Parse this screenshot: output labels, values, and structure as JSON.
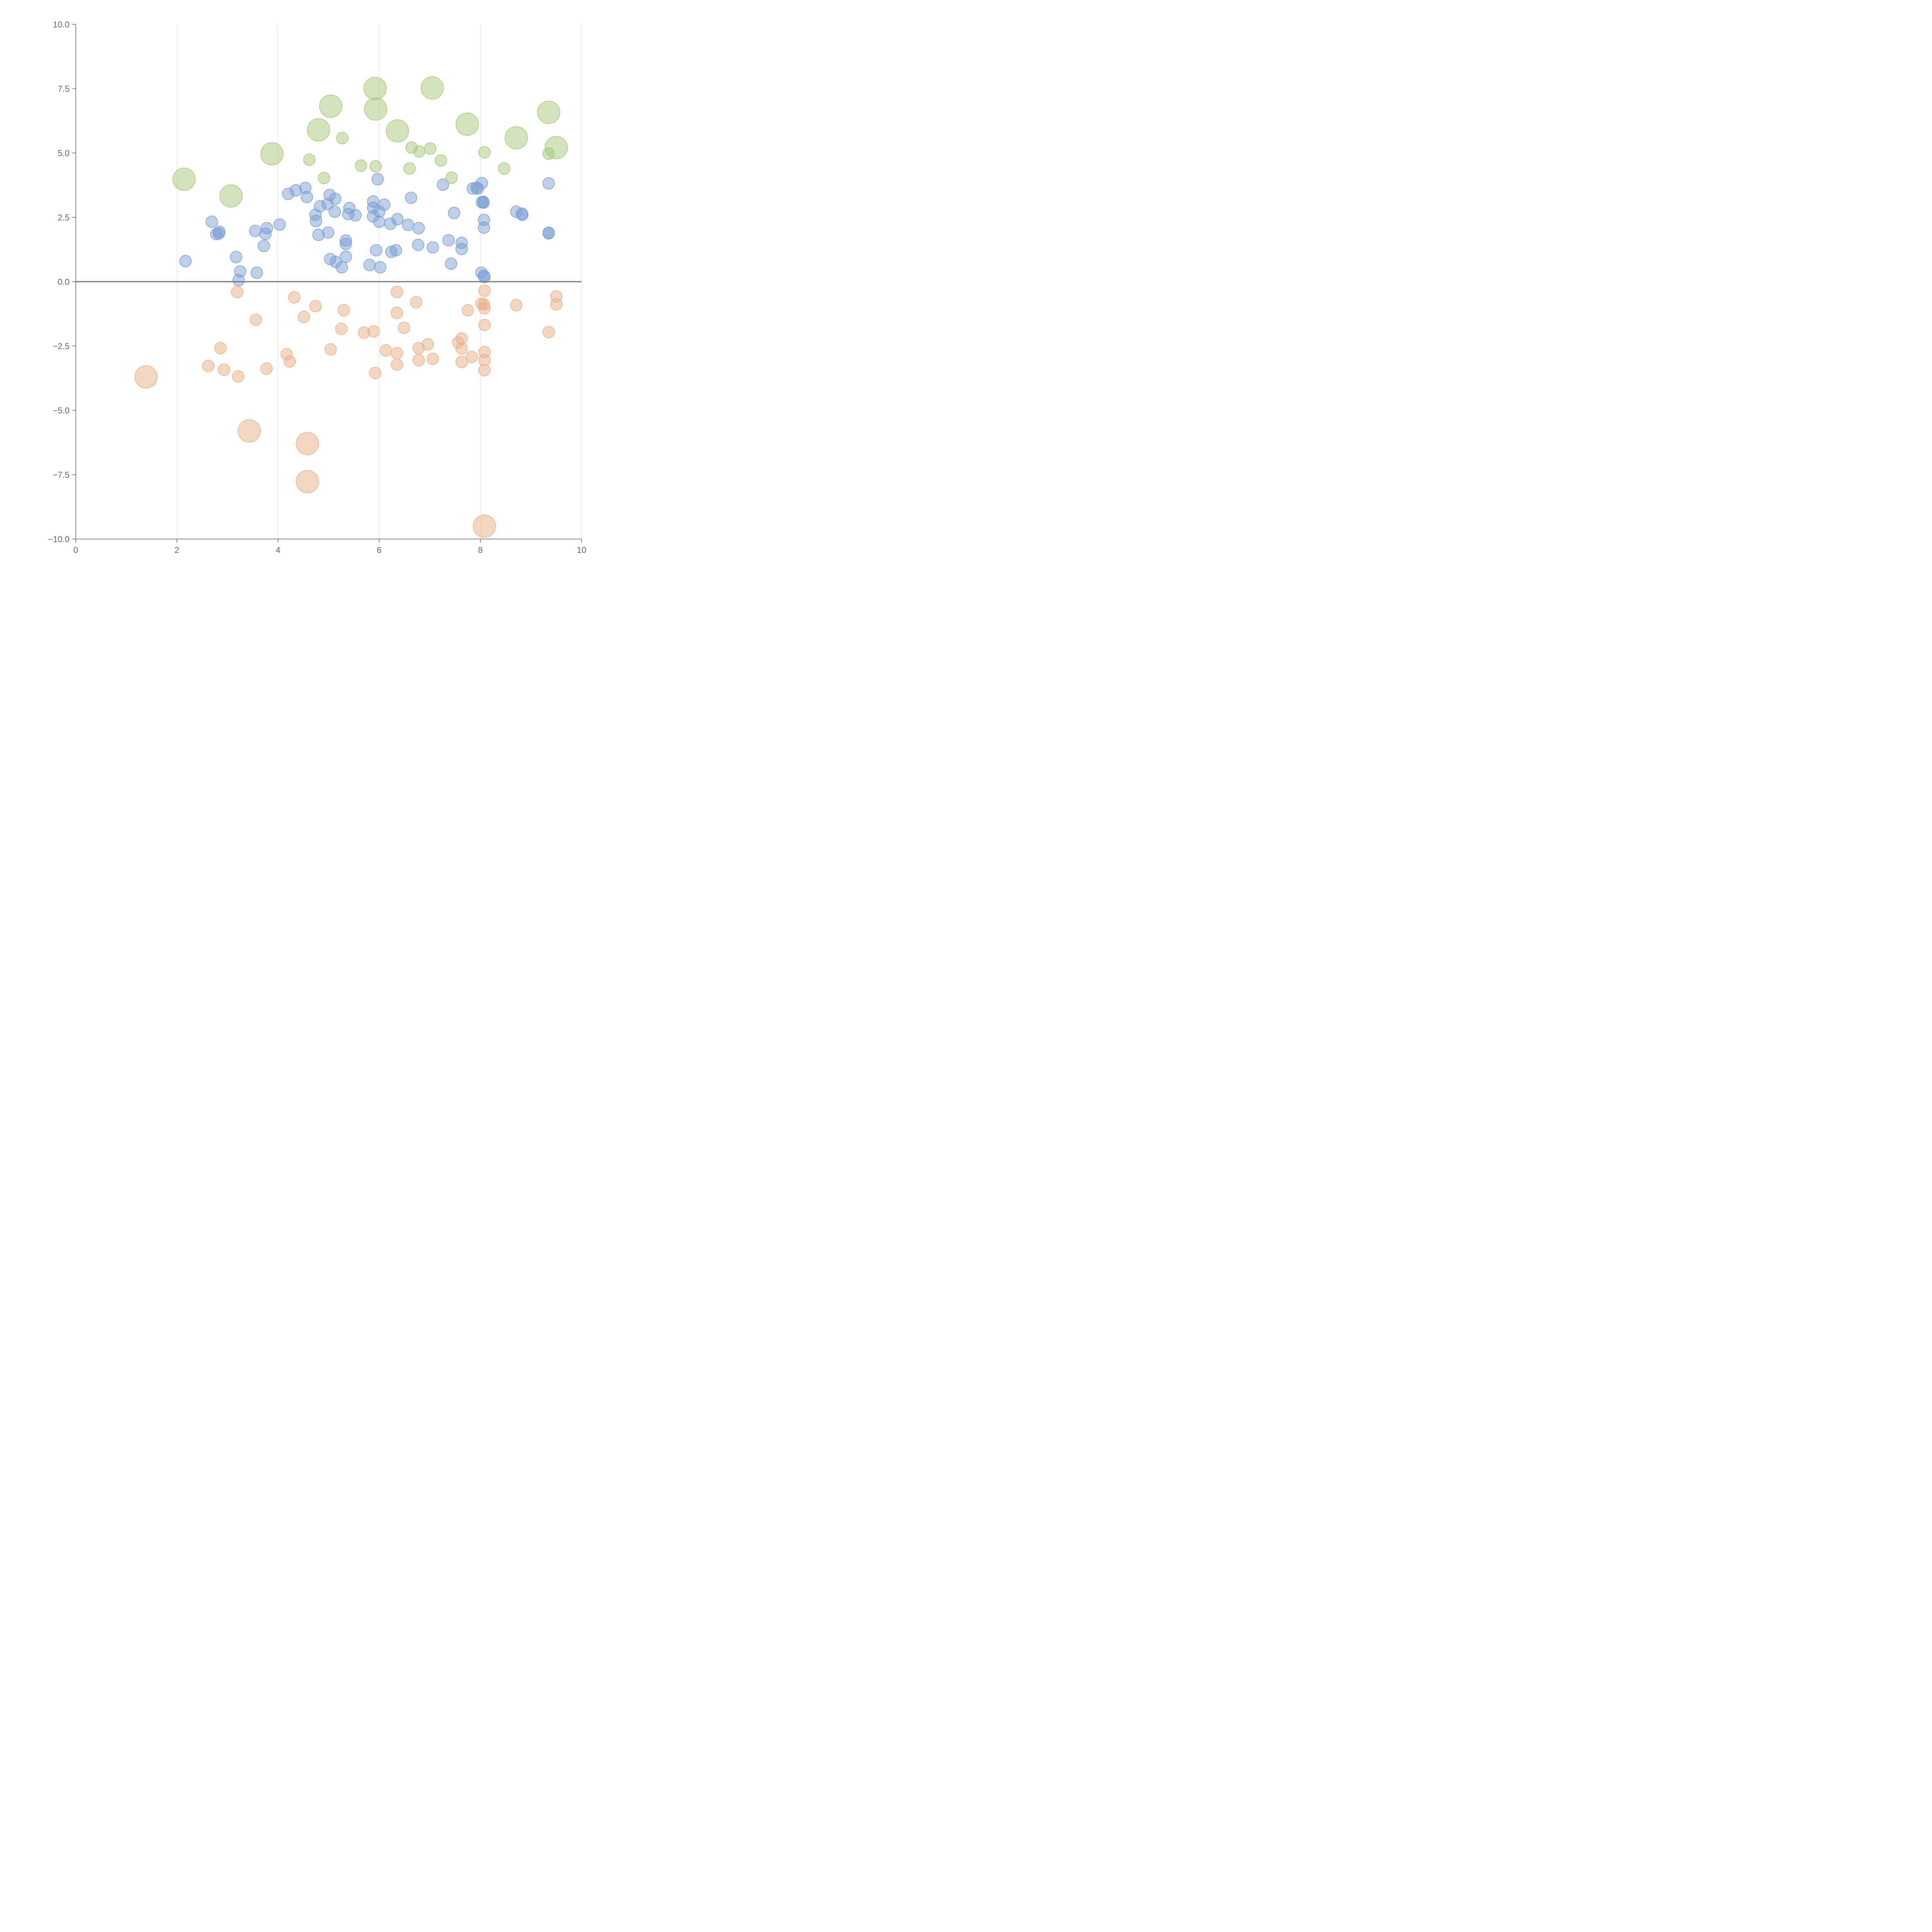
{
  "chart_data": {
    "type": "scatter",
    "title": "",
    "xlabel": "",
    "ylabel": "",
    "xlim": [
      0,
      10
    ],
    "ylim": [
      -10,
      10
    ],
    "x_ticks": [
      "0",
      "2",
      "4",
      "6",
      "8",
      "10"
    ],
    "y_ticks": [
      "−10.0",
      "−7.5",
      "−5.0",
      "−2.5",
      "0.0",
      "2.5",
      "5.0",
      "7.5",
      "10.0"
    ],
    "x_tick_values": [
      0,
      2,
      4,
      6,
      8,
      10
    ],
    "y_tick_values": [
      -10,
      -7.5,
      -5,
      -2.5,
      0,
      2.5,
      5,
      7.5,
      10
    ],
    "grid": "vertical",
    "reference_line": {
      "y": 0
    },
    "series": [
      {
        "color": "#7b9fd4",
        "points": [
          [
            2.17,
            0.8,
            1
          ],
          [
            2.69,
            2.33,
            1
          ],
          [
            2.78,
            1.85,
            1
          ],
          [
            2.83,
            1.87,
            1
          ],
          [
            2.84,
            1.94,
            1
          ],
          [
            3.17,
            0.96,
            1
          ],
          [
            3.25,
            0.4,
            1
          ],
          [
            3.22,
            0.06,
            1
          ],
          [
            3.55,
            1.97,
            1
          ],
          [
            3.58,
            0.35,
            1
          ],
          [
            3.72,
            1.39,
            1
          ],
          [
            3.75,
            1.86,
            1
          ],
          [
            3.78,
            2.08,
            1
          ],
          [
            4.03,
            2.22,
            1
          ],
          [
            4.2,
            3.41,
            1
          ],
          [
            4.35,
            3.55,
            1
          ],
          [
            4.54,
            3.64,
            1
          ],
          [
            4.57,
            3.29,
            1
          ],
          [
            4.74,
            2.6,
            1
          ],
          [
            4.75,
            2.36,
            1
          ],
          [
            4.8,
            1.82,
            1
          ],
          [
            4.83,
            2.93,
            1
          ],
          [
            4.99,
            1.91,
            1
          ],
          [
            4.98,
            3.02,
            1
          ],
          [
            5.02,
            3.37,
            1
          ],
          [
            5.13,
            3.22,
            1
          ],
          [
            5.12,
            2.72,
            1
          ],
          [
            5.03,
            0.88,
            1
          ],
          [
            5.14,
            0.77,
            1
          ],
          [
            5.26,
            0.56,
            1
          ],
          [
            5.34,
            1.6,
            1
          ],
          [
            5.34,
            1.47,
            1
          ],
          [
            5.34,
            0.97,
            1
          ],
          [
            5.39,
            2.63,
            1
          ],
          [
            5.41,
            2.86,
            1
          ],
          [
            5.53,
            2.58,
            1
          ],
          [
            5.81,
            0.65,
            1
          ],
          [
            5.88,
            3.12,
            1
          ],
          [
            5.88,
            2.87,
            1
          ],
          [
            5.88,
            2.54,
            1
          ],
          [
            5.97,
            3.98,
            1
          ],
          [
            5.94,
            1.22,
            1
          ],
          [
            6.0,
            2.73,
            1
          ],
          [
            6.0,
            2.33,
            1
          ],
          [
            6.02,
            0.56,
            1
          ],
          [
            6.1,
            2.99,
            1
          ],
          [
            6.22,
            2.25,
            1
          ],
          [
            6.24,
            1.16,
            1
          ],
          [
            6.33,
            1.22,
            1
          ],
          [
            6.36,
            2.43,
            1
          ],
          [
            6.57,
            2.21,
            1
          ],
          [
            6.63,
            3.26,
            1
          ],
          [
            6.77,
            1.43,
            1
          ],
          [
            6.78,
            2.08,
            1
          ],
          [
            7.06,
            1.33,
            1
          ],
          [
            7.26,
            3.77,
            1
          ],
          [
            7.37,
            1.61,
            1
          ],
          [
            7.42,
            0.7,
            1
          ],
          [
            7.48,
            2.67,
            1
          ],
          [
            7.63,
            1.51,
            1
          ],
          [
            7.63,
            1.27,
            1
          ],
          [
            7.85,
            3.62,
            1
          ],
          [
            7.92,
            3.65,
            1
          ],
          [
            7.95,
            3.62,
            1
          ],
          [
            8.03,
            3.83,
            1
          ],
          [
            8.03,
            3.09,
            1
          ],
          [
            8.06,
            3.1,
            1
          ],
          [
            8.06,
            3.07,
            1
          ],
          [
            8.07,
            2.4,
            1
          ],
          [
            8.07,
            2.1,
            1
          ],
          [
            8.02,
            0.35,
            1
          ],
          [
            8.07,
            0.23,
            1
          ],
          [
            8.08,
            0.18,
            1
          ],
          [
            8.71,
            2.72,
            1
          ],
          [
            8.82,
            2.64,
            1
          ],
          [
            8.83,
            2.6,
            1
          ],
          [
            9.35,
            3.82,
            1
          ],
          [
            9.35,
            1.9,
            1
          ],
          [
            9.35,
            1.88,
            1
          ]
        ]
      },
      {
        "color": "#a8c878",
        "points": [
          [
            2.14,
            3.98,
            2
          ],
          [
            3.07,
            3.33,
            2
          ],
          [
            3.88,
            4.97,
            2
          ],
          [
            4.62,
            4.74,
            1
          ],
          [
            4.8,
            5.9,
            2
          ],
          [
            4.91,
            4.03,
            1
          ],
          [
            5.04,
            6.82,
            2
          ],
          [
            5.27,
            5.58,
            1
          ],
          [
            5.64,
            4.51,
            1
          ],
          [
            5.92,
            7.51,
            2
          ],
          [
            5.93,
            4.48,
            1
          ],
          [
            5.93,
            6.71,
            2
          ],
          [
            6.36,
            5.86,
            2
          ],
          [
            6.6,
            4.4,
            1
          ],
          [
            6.64,
            5.21,
            1
          ],
          [
            6.79,
            5.06,
            1
          ],
          [
            7.01,
            5.17,
            1
          ],
          [
            7.05,
            7.53,
            2
          ],
          [
            7.22,
            4.71,
            1
          ],
          [
            7.43,
            4.04,
            1
          ],
          [
            7.74,
            6.12,
            2
          ],
          [
            8.08,
            5.03,
            1
          ],
          [
            8.47,
            4.4,
            1
          ],
          [
            8.71,
            5.59,
            2
          ],
          [
            9.35,
            6.58,
            2
          ],
          [
            9.35,
            4.98,
            1
          ],
          [
            9.5,
            5.21,
            2
          ]
        ]
      },
      {
        "color": "#eab088",
        "points": [
          [
            1.39,
            -3.7,
            2
          ],
          [
            2.62,
            -3.27,
            1
          ],
          [
            2.86,
            -2.58,
            1
          ],
          [
            2.93,
            -3.42,
            1
          ],
          [
            3.19,
            -0.4,
            1
          ],
          [
            3.21,
            -3.68,
            1
          ],
          [
            3.43,
            -5.8,
            2
          ],
          [
            3.56,
            -1.48,
            1
          ],
          [
            3.77,
            -3.38,
            1
          ],
          [
            4.17,
            -2.82,
            1
          ],
          [
            4.23,
            -3.1,
            1
          ],
          [
            4.32,
            -0.61,
            1
          ],
          [
            4.51,
            -1.37,
            1
          ],
          [
            4.58,
            -6.29,
            2
          ],
          [
            4.58,
            -7.77,
            2
          ],
          [
            4.74,
            -0.95,
            1
          ],
          [
            5.04,
            -2.63,
            1
          ],
          [
            5.25,
            -1.83,
            1
          ],
          [
            5.3,
            -1.11,
            1
          ],
          [
            5.7,
            -1.98,
            1
          ],
          [
            5.89,
            -1.93,
            1
          ],
          [
            5.92,
            -3.55,
            1
          ],
          [
            6.13,
            -2.67,
            1
          ],
          [
            6.35,
            -0.4,
            1
          ],
          [
            6.35,
            -1.21,
            1
          ],
          [
            6.35,
            -2.78,
            1
          ],
          [
            6.35,
            -3.22,
            1
          ],
          [
            6.49,
            -1.79,
            1
          ],
          [
            6.73,
            -0.8,
            1
          ],
          [
            6.78,
            -2.58,
            1
          ],
          [
            6.78,
            -3.05,
            1
          ],
          [
            6.96,
            -2.43,
            1
          ],
          [
            7.06,
            -3.0,
            1
          ],
          [
            7.56,
            -2.36,
            1
          ],
          [
            7.63,
            -2.21,
            1
          ],
          [
            7.63,
            -2.6,
            1
          ],
          [
            7.63,
            -3.12,
            1
          ],
          [
            7.75,
            -1.11,
            1
          ],
          [
            7.83,
            -2.92,
            1
          ],
          [
            8.02,
            -0.85,
            1
          ],
          [
            8.07,
            -0.88,
            1
          ],
          [
            8.08,
            -0.35,
            1
          ],
          [
            8.08,
            -1.03,
            1
          ],
          [
            8.08,
            -1.68,
            1
          ],
          [
            8.08,
            -2.73,
            1
          ],
          [
            8.08,
            -3.05,
            1
          ],
          [
            8.08,
            -3.44,
            1
          ],
          [
            8.08,
            -9.5,
            2
          ],
          [
            8.71,
            -0.91,
            1
          ],
          [
            9.35,
            -1.96,
            1
          ],
          [
            9.5,
            -0.57,
            1
          ],
          [
            9.5,
            -0.88,
            1
          ]
        ]
      }
    ]
  }
}
